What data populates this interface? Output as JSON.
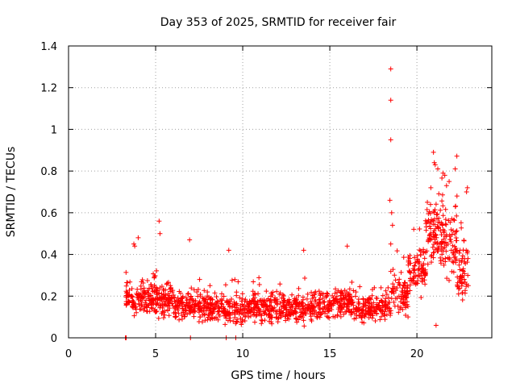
{
  "chart_data": {
    "type": "scatter",
    "title": "Day 353 of 2025, SRMTID for receiver fair",
    "xlabel": "GPS time / hours",
    "ylabel": "SRMTID / TECUs",
    "xlim": [
      0,
      24.3
    ],
    "ylim": [
      0,
      1.4
    ],
    "x_ticks": [
      0,
      5,
      10,
      15,
      20
    ],
    "x_tick_labels": [
      "0",
      "5",
      "10",
      "15",
      "20"
    ],
    "y_ticks": [
      0,
      0.2,
      0.4,
      0.6,
      0.8,
      1.0,
      1.2,
      1.4
    ],
    "y_tick_labels": [
      "0",
      "0.2",
      "0.4",
      "0.6",
      "0.8",
      "1",
      "1.2",
      "1.4"
    ],
    "grid": true,
    "marker": "+",
    "series": [
      {
        "name": "SRMTID",
        "color": "#ff0000",
        "segments": [
          {
            "x_start": 3.25,
            "x_end": 3.35,
            "mean": 0.0,
            "spread": 0.0,
            "n": 4
          },
          {
            "x_start": 3.3,
            "x_end": 5.0,
            "mean": 0.19,
            "spread": 0.07,
            "n": 150
          },
          {
            "x_start": 5.0,
            "x_end": 6.0,
            "mean": 0.18,
            "spread": 0.07,
            "n": 100
          },
          {
            "x_start": 6.0,
            "x_end": 8.0,
            "mean": 0.15,
            "spread": 0.06,
            "n": 160
          },
          {
            "x_start": 8.0,
            "x_end": 10.0,
            "mean": 0.13,
            "spread": 0.06,
            "n": 160
          },
          {
            "x_start": 10.0,
            "x_end": 12.0,
            "mean": 0.14,
            "spread": 0.06,
            "n": 160
          },
          {
            "x_start": 12.0,
            "x_end": 14.0,
            "mean": 0.14,
            "spread": 0.06,
            "n": 160
          },
          {
            "x_start": 14.0,
            "x_end": 16.5,
            "mean": 0.16,
            "spread": 0.06,
            "n": 200
          },
          {
            "x_start": 16.5,
            "x_end": 18.5,
            "mean": 0.14,
            "spread": 0.05,
            "n": 160
          },
          {
            "x_start": 18.5,
            "x_end": 19.5,
            "mean": 0.2,
            "spread": 0.08,
            "n": 80
          },
          {
            "x_start": 19.5,
            "x_end": 20.5,
            "mean": 0.33,
            "spread": 0.1,
            "n": 90
          },
          {
            "x_start": 20.5,
            "x_end": 21.5,
            "mean": 0.5,
            "spread": 0.14,
            "n": 100
          },
          {
            "x_start": 21.5,
            "x_end": 22.3,
            "mean": 0.45,
            "spread": 0.14,
            "n": 70
          },
          {
            "x_start": 22.3,
            "x_end": 22.95,
            "mean": 0.32,
            "spread": 0.12,
            "n": 60
          }
        ],
        "points": [
          [
            18.5,
            1.29
          ],
          [
            18.5,
            1.14
          ],
          [
            18.5,
            0.95
          ],
          [
            18.45,
            0.66
          ],
          [
            18.55,
            0.6
          ],
          [
            18.6,
            0.54
          ],
          [
            18.5,
            0.45
          ],
          [
            20.95,
            0.89
          ],
          [
            21.0,
            0.84
          ],
          [
            21.05,
            0.83
          ],
          [
            21.2,
            0.81
          ],
          [
            21.5,
            0.79
          ],
          [
            21.6,
            0.78
          ],
          [
            22.2,
            0.81
          ],
          [
            22.9,
            0.72
          ],
          [
            22.85,
            0.7
          ],
          [
            21.85,
            0.75
          ],
          [
            21.7,
            0.73
          ],
          [
            22.3,
            0.68
          ],
          [
            5.2,
            0.56
          ],
          [
            5.25,
            0.5
          ],
          [
            3.75,
            0.45
          ],
          [
            3.8,
            0.44
          ],
          [
            4.0,
            0.48
          ],
          [
            6.95,
            0.47
          ],
          [
            9.2,
            0.42
          ],
          [
            13.5,
            0.42
          ],
          [
            16.0,
            0.44
          ],
          [
            21.1,
            0.06
          ],
          [
            20.6,
            0.65
          ],
          [
            20.8,
            0.72
          ],
          [
            9.6,
            0.0
          ],
          [
            9.05,
            0.0
          ],
          [
            7.0,
            0.0
          ]
        ]
      }
    ]
  }
}
